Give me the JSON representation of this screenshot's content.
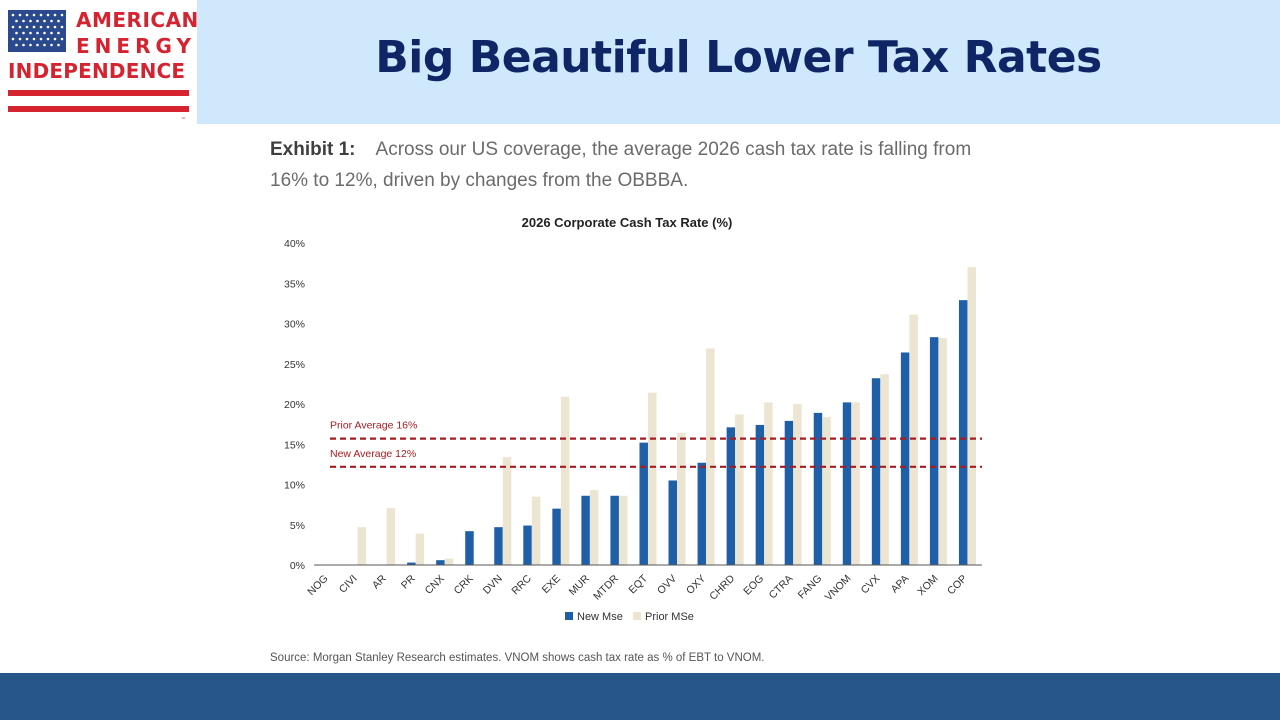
{
  "header": {
    "title": "Big Beautiful Lower Tax Rates",
    "logo_lines": [
      "AMERICAN",
      "ENERGY",
      "INDEPENDENCE"
    ],
    "logo_trademark": "™",
    "background_color": "#cfe8fb",
    "title_color": "#0f2566"
  },
  "exhibit": {
    "label": "Exhibit 1:",
    "text": "Across our US coverage, the average 2026 cash tax rate is falling from 16% to 12%, driven by changes from the OBBBA."
  },
  "source": "Source: Morgan Stanley Research estimates. VNOM shows cash tax rate as % of EBT to VNOM.",
  "footer": {
    "color": "#27578a"
  },
  "chart_data": {
    "type": "bar",
    "title": "2026 Corporate Cash Tax Rate (%)",
    "xlabel": "",
    "ylabel": "",
    "ylim": [
      0,
      40
    ],
    "yticks": [
      "0%",
      "5%",
      "10%",
      "15%",
      "20%",
      "25%",
      "30%",
      "35%",
      "40%"
    ],
    "categories": [
      "NOG",
      "CIVI",
      "AR",
      "PR",
      "CNX",
      "CRK",
      "DVN",
      "RRC",
      "EXE",
      "MUR",
      "MTDR",
      "EQT",
      "OVV",
      "OXY",
      "CHRD",
      "EOG",
      "CTRA",
      "FANG",
      "VNOM",
      "CVX",
      "APA",
      "XOM",
      "COP"
    ],
    "series": [
      {
        "name": "New Mse",
        "color": "#1f5fa8",
        "values": [
          0,
          0,
          0,
          0.3,
          0.6,
          4.2,
          4.7,
          4.9,
          7.0,
          8.6,
          8.6,
          15.2,
          10.5,
          12.7,
          17.1,
          17.4,
          17.9,
          18.9,
          20.2,
          23.2,
          26.4,
          28.3,
          32.9
        ]
      },
      {
        "name": "Prior MSe",
        "color": "#ebe5d2",
        "values": [
          0,
          4.7,
          7.1,
          3.9,
          0.8,
          0,
          13.4,
          8.5,
          20.9,
          9.3,
          8.6,
          21.4,
          16.4,
          26.9,
          18.7,
          20.2,
          20.0,
          18.4,
          20.2,
          23.7,
          31.1,
          28.2,
          37.0
        ]
      }
    ],
    "reference_lines": [
      {
        "label": "Prior Average 16%",
        "value": 15.7,
        "color": "#a51d22"
      },
      {
        "label": "New Average 12%",
        "value": 12.2,
        "color": "#a51d22"
      }
    ],
    "legend_position": "bottom-center",
    "grid": false
  }
}
